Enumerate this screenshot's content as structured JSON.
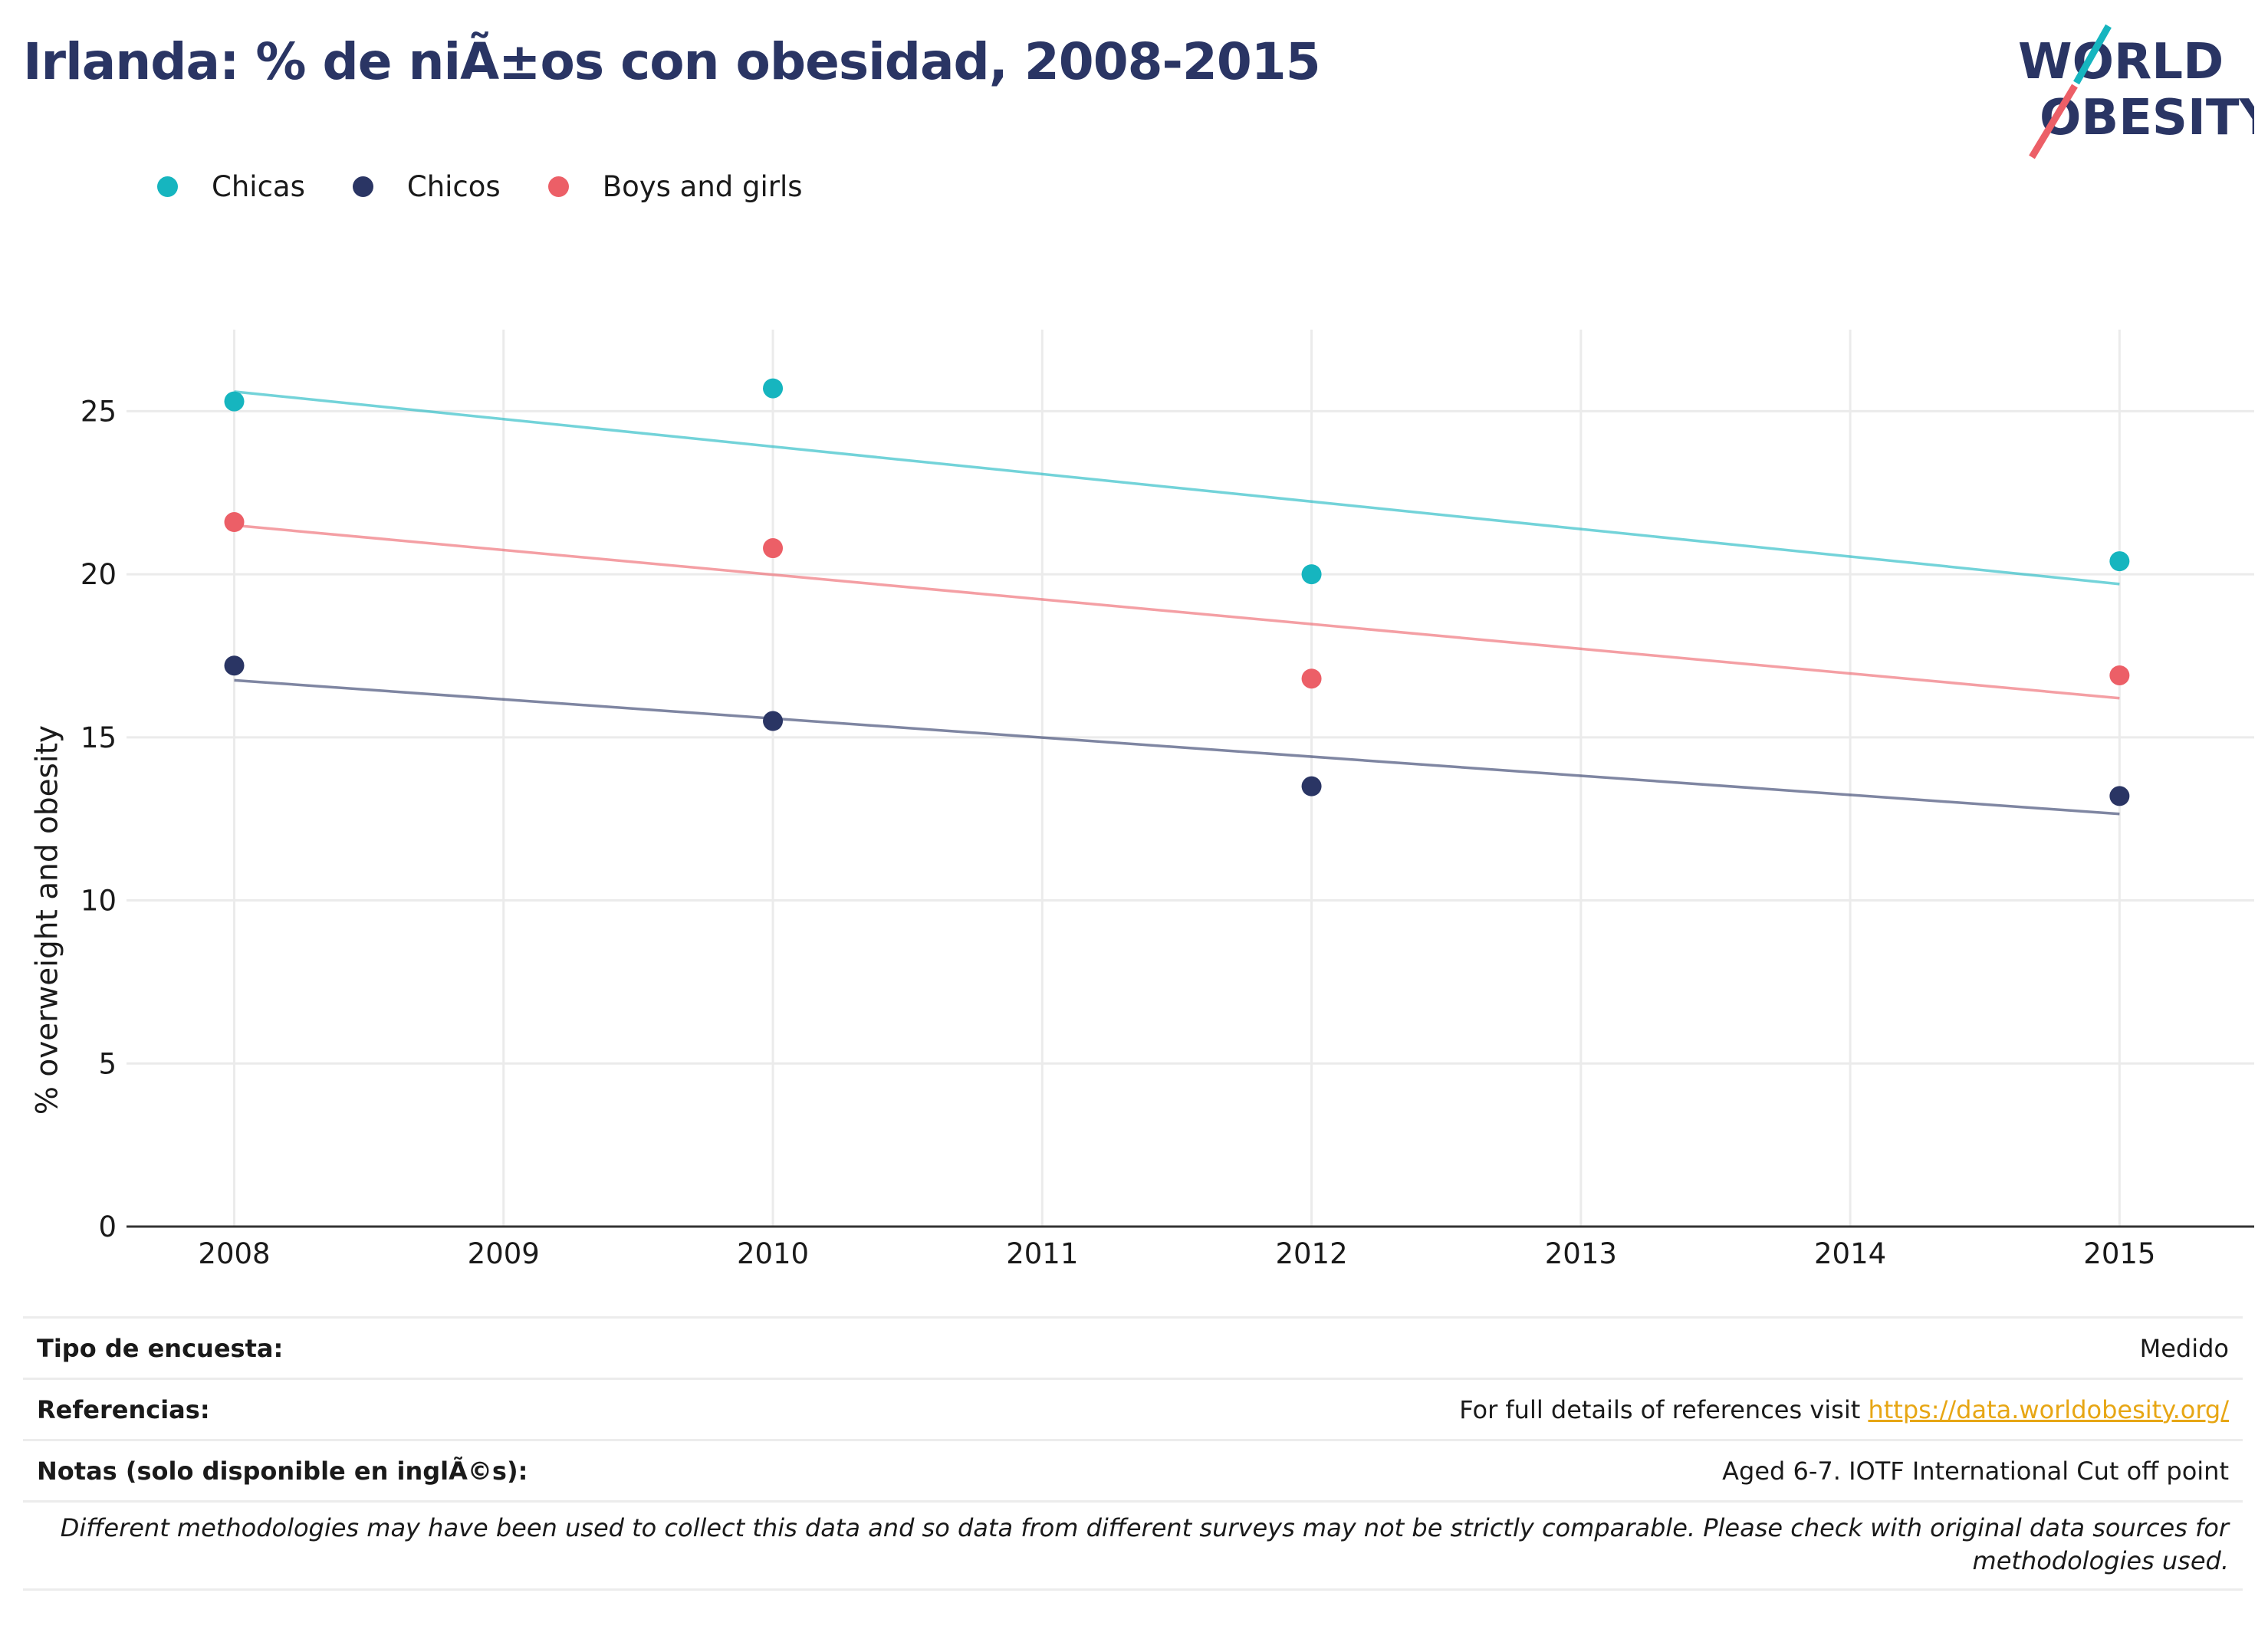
{
  "title": "Irlanda: % de niÃ±os con obesidad, 2008-2015",
  "logo": {
    "line1": "WORLD",
    "line2": "OBESITY"
  },
  "colors": {
    "chicas": "#16b5bf",
    "chicos": "#2a3564",
    "both": "#ec5f67",
    "title": "#2a3564"
  },
  "chart_data": {
    "type": "scatter",
    "title": "Irlanda: % de niÃ±os con obesidad, 2008-2015",
    "ylabel": "% overweight and obesity",
    "xlabel": "",
    "xlim": [
      2007.6,
      2015.5
    ],
    "ylim": [
      0,
      27.5
    ],
    "x_ticks": [
      2008,
      2009,
      2010,
      2011,
      2012,
      2013,
      2014,
      2015
    ],
    "y_ticks": [
      0,
      5,
      10,
      15,
      20,
      25
    ],
    "legend_position": "top-left",
    "grid": true,
    "trend_lines": true,
    "series": [
      {
        "name": "Chicas",
        "color": "#16b5bf",
        "points": [
          [
            2008,
            25.3
          ],
          [
            2010,
            25.7
          ],
          [
            2012,
            20.0
          ],
          [
            2015,
            20.4
          ]
        ],
        "trend": [
          [
            2008,
            25.6
          ],
          [
            2015,
            19.7
          ]
        ]
      },
      {
        "name": "Chicos",
        "color": "#2a3564",
        "points": [
          [
            2008,
            17.2
          ],
          [
            2010,
            15.5
          ],
          [
            2012,
            13.5
          ],
          [
            2015,
            13.2
          ]
        ],
        "trend": [
          [
            2008,
            16.75
          ],
          [
            2015,
            12.65
          ]
        ]
      },
      {
        "name": "Boys and girls",
        "color": "#ec5f67",
        "points": [
          [
            2008,
            21.6
          ],
          [
            2010,
            20.8
          ],
          [
            2012,
            16.8
          ],
          [
            2015,
            16.9
          ]
        ],
        "trend": [
          [
            2008,
            21.5
          ],
          [
            2015,
            16.2
          ]
        ]
      }
    ]
  },
  "footer": {
    "survey_label": "Tipo de encuesta:",
    "survey_value": "Medido",
    "refs_label": "Referencias:",
    "refs_text": "For full details of references visit ",
    "refs_link": "https://data.worldobesity.org/",
    "notes_label": "Notas (solo disponible en inglÃ©s):",
    "notes_value": "Aged 6-7. IOTF International Cut off point",
    "disclaimer": "Different methodologies may have been used to collect this data and so data from different surveys may not be strictly comparable. Please check with original data sources for methodologies used."
  }
}
